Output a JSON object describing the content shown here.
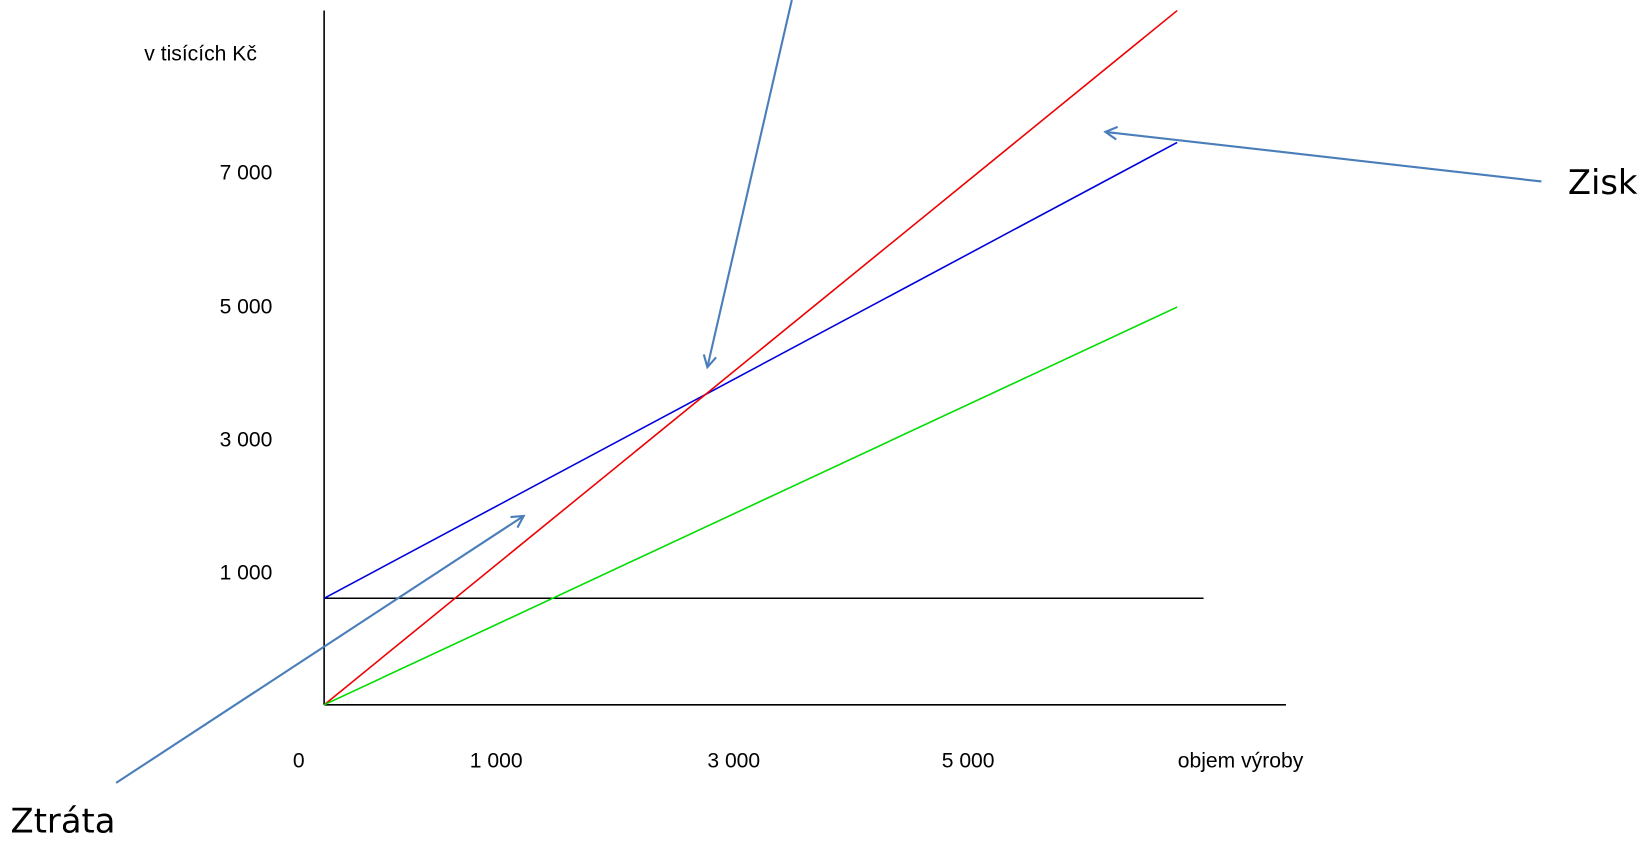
{
  "y_axis_label": "v tisících Kč",
  "y_ticks": [
    "7 000",
    "5 000",
    "3 000",
    "1 000"
  ],
  "x_ticks": [
    "0",
    "1 000",
    "3 000",
    "5 000"
  ],
  "x_axis_label": "objem výroby",
  "annotations": {
    "profit": "Zisk",
    "loss": "Ztráta"
  }
}
